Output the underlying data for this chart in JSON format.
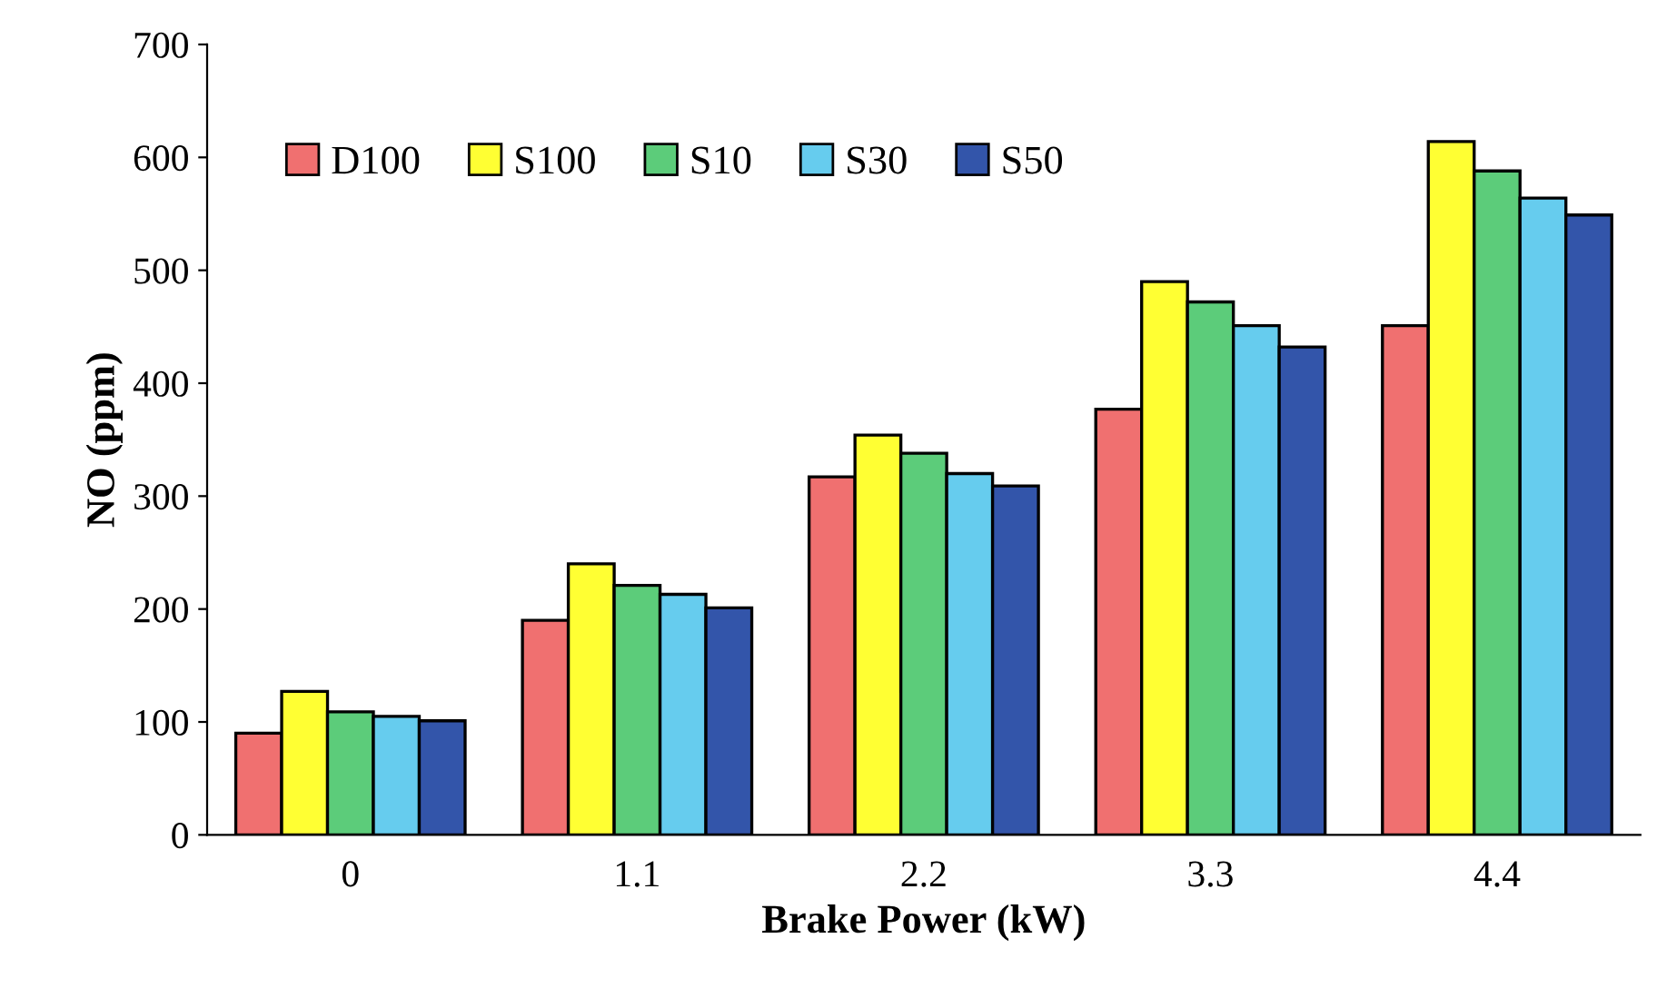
{
  "chart_data": {
    "type": "bar",
    "xlabel": "Brake Power (kW)",
    "ylabel": "NO (ppm)",
    "categories": [
      "0",
      "1.1",
      "2.2",
      "3.3",
      "4.4"
    ],
    "series": [
      {
        "name": "D100",
        "color": "#f07070",
        "values": [
          90,
          190,
          317,
          377,
          451
        ]
      },
      {
        "name": "S100",
        "color": "#ffff33",
        "values": [
          127,
          240,
          354,
          490,
          614
        ]
      },
      {
        "name": "S10",
        "color": "#5ccc7a",
        "values": [
          109,
          221,
          338,
          472,
          588
        ]
      },
      {
        "name": "S30",
        "color": "#66ccee",
        "values": [
          105,
          213,
          320,
          451,
          564
        ]
      },
      {
        "name": "S50",
        "color": "#3355aa",
        "values": [
          101,
          201,
          309,
          432,
          549
        ]
      }
    ],
    "ylim": [
      0,
      700
    ],
    "yticks": [
      0,
      100,
      200,
      300,
      400,
      500,
      600,
      700
    ],
    "grid": false,
    "legend": "top left"
  }
}
